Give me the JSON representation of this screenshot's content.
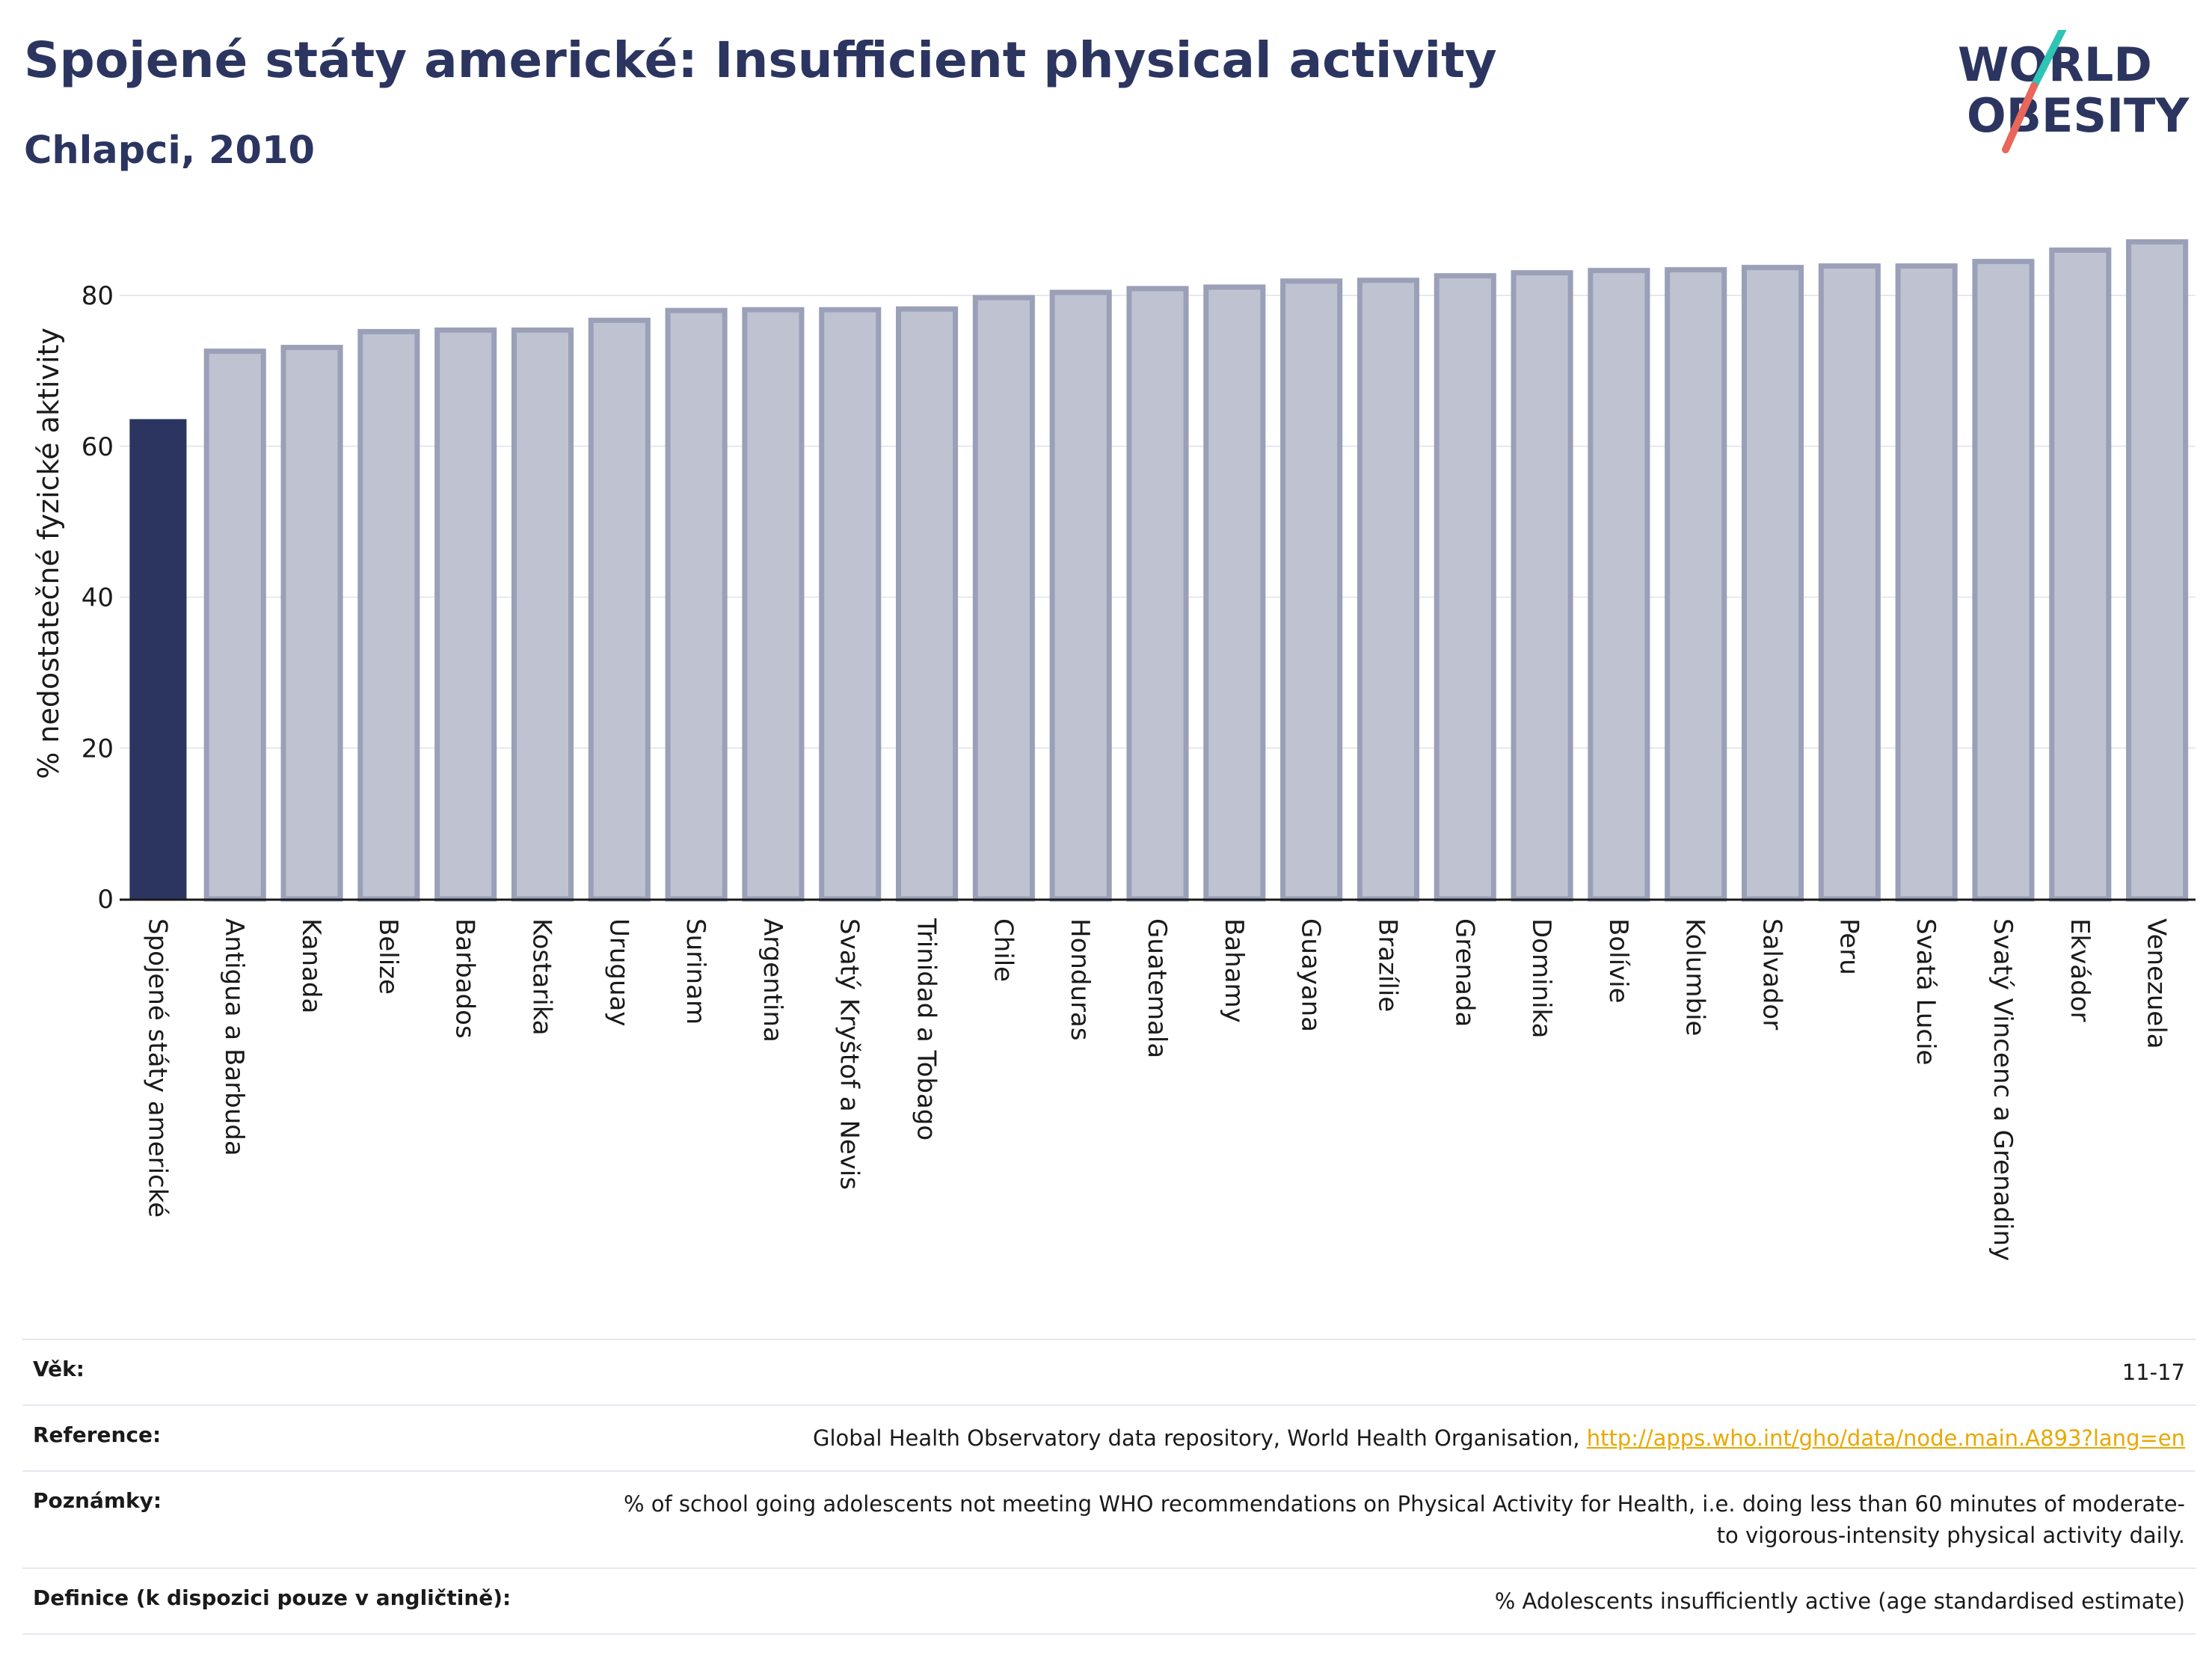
{
  "header": {
    "title": "Spojené státy americké: Insufficient physical activity",
    "subtitle": "Chlapci, 2010"
  },
  "logo": {
    "line1": "WORLD",
    "line2": "OBESITY",
    "slash_color_top": "#2ec4b6",
    "slash_color_bottom": "#e8665a"
  },
  "colors": {
    "highlight_bar": "#2b3560",
    "other_bar_fill": "#bfc3d1",
    "other_bar_stroke": "#9aa0b8",
    "text": "#2b3560"
  },
  "chart_data": {
    "type": "bar",
    "ylabel": "% nedostatečné fyzické aktivity",
    "ylim": [
      0,
      90
    ],
    "yticks": [
      0,
      20,
      40,
      60,
      80
    ],
    "grid": true,
    "highlight_index": 0,
    "categories": [
      "Spojené státy americké",
      "Antigua a Barbuda",
      "Kanada",
      "Belize",
      "Barbados",
      "Kostarika",
      "Uruguay",
      "Surinam",
      "Argentina",
      "Svatý Kryštof a Nevis",
      "Trinidad a Tobago",
      "Chile",
      "Honduras",
      "Guatemala",
      "Bahamy",
      "Guayana",
      "Brazílie",
      "Grenada",
      "Dominika",
      "Bolívie",
      "Kolumbie",
      "Salvador",
      "Peru",
      "Svatá Lucie",
      "Svatý Vincenc a Grenadiny",
      "Ekvádor",
      "Venezuela"
    ],
    "values": [
      63.6,
      72.6,
      73.1,
      75.2,
      75.4,
      75.4,
      76.7,
      78.0,
      78.1,
      78.1,
      78.2,
      79.7,
      80.4,
      80.9,
      81.1,
      81.9,
      82.0,
      82.6,
      83.0,
      83.3,
      83.4,
      83.7,
      83.9,
      83.9,
      84.5,
      86.0,
      87.1
    ]
  },
  "info": {
    "rows": [
      {
        "label": "Věk:",
        "value": "11-17"
      },
      {
        "label": "Reference:",
        "value": "Global Health Observatory data repository, World Health Organisation,",
        "link": "http://apps.who.int/gho/data/node.main.A893?lang=en"
      },
      {
        "label": "Poznámky:",
        "value": "% of school going adolescents not meeting WHO recommendations on Physical Activity for Health, i.e. doing less than 60 minutes of moderate- to vigorous-intensity physical activity daily."
      },
      {
        "label": "Definice (k dispozici pouze v angličtině):",
        "value": "% Adolescents insufficiently active (age standardised estimate)"
      }
    ]
  }
}
